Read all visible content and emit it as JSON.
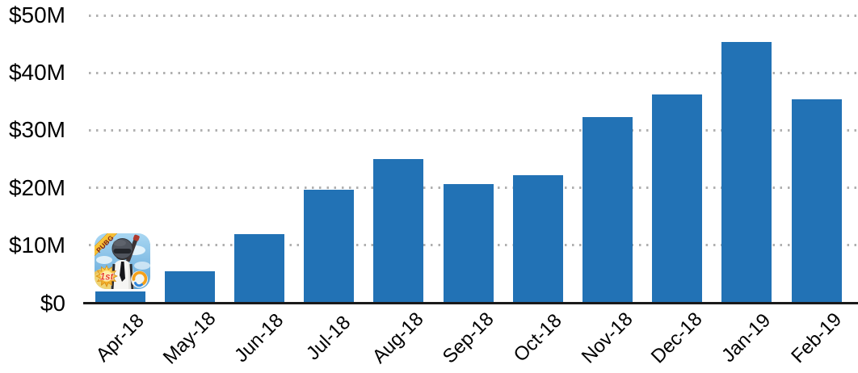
{
  "colors": {
    "bar": "#2272b5",
    "grid_dot": "#b0b0b0",
    "axis_line": "#1a1a1a",
    "label_text": "#000000"
  },
  "chart_data": {
    "type": "bar",
    "title": "",
    "xlabel": "",
    "ylabel": "",
    "value_unit": "USD millions",
    "categories": [
      "Apr-18",
      "May-18",
      "Jun-18",
      "Jul-18",
      "Aug-18",
      "Sep-18",
      "Oct-18",
      "Nov-18",
      "Dec-18",
      "Jan-19",
      "Feb-19"
    ],
    "values": [
      2,
      5.5,
      12,
      19.7,
      25,
      20.7,
      22.2,
      32.3,
      36.2,
      45.4,
      35.4
    ],
    "ytick_values": [
      0,
      10,
      20,
      30,
      40,
      50
    ],
    "ytick_labels": [
      "$0",
      "$10M",
      "$20M",
      "$30M",
      "$40M",
      "$50M"
    ],
    "ylim": [
      0,
      50
    ],
    "grid": "horizontal dotted",
    "legend": "none",
    "bar_color": "#2272b5",
    "annotation": {
      "type": "app-icon",
      "anchored_category": "Apr-18",
      "ribbon_text": "PUBG",
      "badge_text": "1st"
    }
  }
}
